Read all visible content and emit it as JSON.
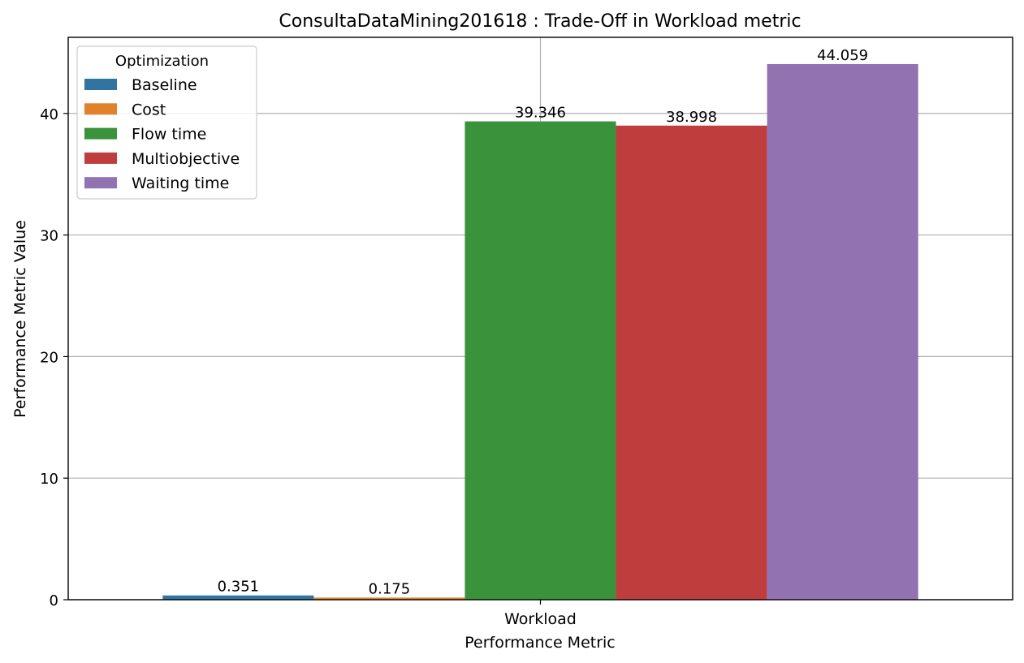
{
  "chart_data": {
    "type": "bar",
    "title": "ConsultaDataMining201618 : Trade-Off in Workload metric",
    "xlabel": "Performance Metric",
    "ylabel": "Performance Metric Value",
    "categories": [
      "Workload"
    ],
    "ylim": [
      0,
      46.26
    ],
    "yticks": [
      0,
      10,
      20,
      30,
      40
    ],
    "grid": true,
    "legend": {
      "title": "Optimization",
      "placement": "top-left"
    },
    "series": [
      {
        "name": "Baseline",
        "values": [
          0.351
        ],
        "label": "0.351",
        "color": "#3274a1"
      },
      {
        "name": "Cost",
        "values": [
          0.175
        ],
        "label": "0.175",
        "color": "#e1812c"
      },
      {
        "name": "Flow time",
        "values": [
          39.346
        ],
        "label": "39.346",
        "color": "#3a923a"
      },
      {
        "name": "Multiobjective",
        "values": [
          38.998
        ],
        "label": "38.998",
        "color": "#c03d3e"
      },
      {
        "name": "Waiting time",
        "values": [
          44.059
        ],
        "label": "44.059",
        "color": "#9372b2"
      }
    ]
  }
}
